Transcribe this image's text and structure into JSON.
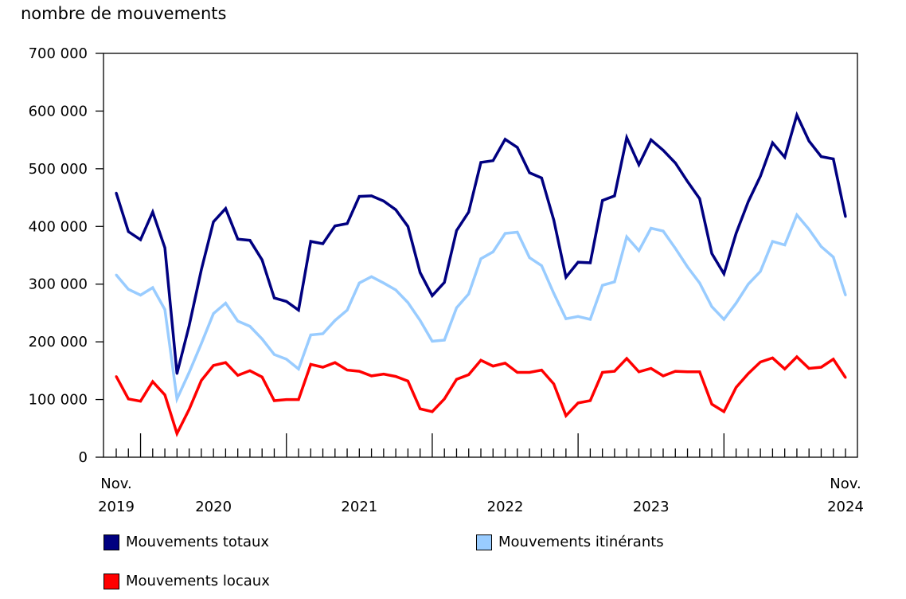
{
  "chart_data": {
    "type": "line",
    "ylabel": "nombre de mouvements",
    "xlabel": "",
    "ylim": [
      0,
      700000
    ],
    "yticks": [
      "0",
      "100 000",
      "200 000",
      "300 000",
      "400 000",
      "500 000",
      "600 000",
      "700 000"
    ],
    "x_start": "2019-11",
    "x_end": "2024-11",
    "x_tick_labels": [
      {
        "month": "2019-11",
        "line1": "Nov.",
        "line2": "2019"
      },
      {
        "month": "2020-07",
        "line1": "",
        "line2": "2020"
      },
      {
        "month": "2021-07",
        "line1": "",
        "line2": "2021"
      },
      {
        "month": "2022-07",
        "line1": "",
        "line2": "2022"
      },
      {
        "month": "2023-07",
        "line1": "",
        "line2": "2023"
      },
      {
        "month": "2024-11",
        "line1": "Nov.",
        "line2": "2024"
      }
    ],
    "grid": false,
    "legend_position": "bottom",
    "series": [
      {
        "name": "Mouvements totaux",
        "color": "#000080",
        "values": [
          458000,
          391000,
          377000,
          425000,
          363000,
          145000,
          228000,
          325000,
          408000,
          431000,
          378000,
          376000,
          342000,
          276000,
          270000,
          255000,
          374000,
          370000,
          401000,
          405000,
          452000,
          453000,
          444000,
          429000,
          400000,
          320000,
          280000,
          303000,
          393000,
          425000,
          511000,
          514000,
          551000,
          537000,
          493000,
          484000,
          411000,
          312000,
          338000,
          337000,
          445000,
          453000,
          554000,
          507000,
          550000,
          532000,
          510000,
          478000,
          448000,
          353000,
          318000,
          388000,
          443000,
          487000,
          545000,
          520000,
          593000,
          548000,
          521000,
          517000,
          417000
        ]
      },
      {
        "name": "Mouvements itinérants",
        "color": "#99ccff",
        "values": [
          316000,
          291000,
          281000,
          294000,
          256000,
          101000,
          147000,
          197000,
          249000,
          267000,
          236000,
          227000,
          205000,
          178000,
          170000,
          153000,
          212000,
          214000,
          237000,
          255000,
          302000,
          313000,
          302000,
          290000,
          268000,
          237000,
          201000,
          203000,
          259000,
          283000,
          344000,
          356000,
          388000,
          390000,
          346000,
          332000,
          284000,
          240000,
          244000,
          239000,
          298000,
          304000,
          382000,
          358000,
          397000,
          392000,
          362000,
          330000,
          302000,
          261000,
          239000,
          267000,
          300000,
          322000,
          374000,
          368000,
          420000,
          395000,
          365000,
          347000,
          281000
        ]
      },
      {
        "name": "Mouvements locaux",
        "color": "#ff0000",
        "values": [
          140000,
          101000,
          97000,
          131000,
          108000,
          41000,
          83000,
          133000,
          159000,
          164000,
          142000,
          150000,
          139000,
          98000,
          100000,
          100000,
          161000,
          156000,
          164000,
          151000,
          149000,
          141000,
          144000,
          140000,
          132000,
          84000,
          79000,
          101000,
          135000,
          143000,
          168000,
          158000,
          163000,
          147000,
          147000,
          151000,
          127000,
          72000,
          94000,
          98000,
          147000,
          149000,
          171000,
          148000,
          154000,
          141000,
          149000,
          148000,
          148000,
          92000,
          79000,
          121000,
          145000,
          165000,
          172000,
          153000,
          174000,
          154000,
          156000,
          170000,
          138000
        ]
      }
    ]
  }
}
